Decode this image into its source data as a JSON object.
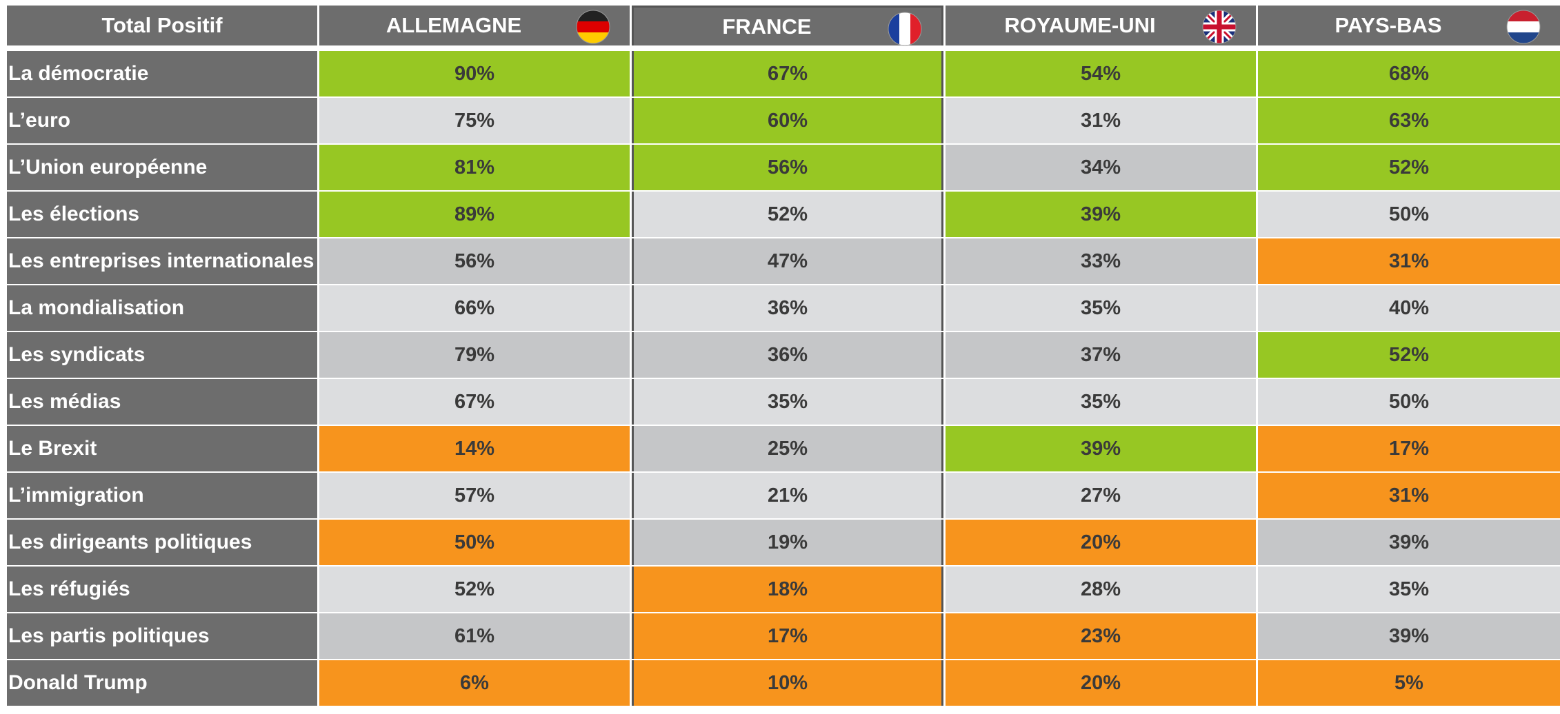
{
  "table": {
    "header": [
      "Total Positif",
      "ALLEMAGNE",
      "FRANCE",
      "ROYAUME-UNI",
      "PAYS-BAS"
    ],
    "rows": [
      {
        "label": "La démocratie",
        "values": [
          "90%",
          "67%",
          "54%",
          "68%"
        ],
        "colors": [
          "#97c723",
          "#97c723",
          "#97c723",
          "#97c723"
        ]
      },
      {
        "label": "L’euro",
        "values": [
          "75%",
          "60%",
          "31%",
          "63%"
        ],
        "colors": [
          "#dcdddf",
          "#97c723",
          "#dcdddf",
          "#97c723"
        ]
      },
      {
        "label": "L’Union européenne",
        "values": [
          "81%",
          "56%",
          "34%",
          "52%"
        ],
        "colors": [
          "#97c723",
          "#97c723",
          "#c5c6c8",
          "#97c723"
        ]
      },
      {
        "label": "Les élections",
        "values": [
          "89%",
          "52%",
          "39%",
          "50%"
        ],
        "colors": [
          "#97c723",
          "#dcdddf",
          "#97c723",
          "#dcdddf"
        ]
      },
      {
        "label": "Les entreprises internationales",
        "values": [
          "56%",
          "47%",
          "33%",
          "31%"
        ],
        "colors": [
          "#c5c6c8",
          "#c5c6c8",
          "#c5c6c8",
          "#f7941d"
        ]
      },
      {
        "label": "La mondialisation",
        "values": [
          "66%",
          "36%",
          "35%",
          "40%"
        ],
        "colors": [
          "#dcdddf",
          "#dcdddf",
          "#dcdddf",
          "#dcdddf"
        ]
      },
      {
        "label": "Les syndicats",
        "values": [
          "79%",
          "36%",
          "37%",
          "52%"
        ],
        "colors": [
          "#c5c6c8",
          "#c5c6c8",
          "#c5c6c8",
          "#97c723"
        ]
      },
      {
        "label": "Les médias",
        "values": [
          "67%",
          "35%",
          "35%",
          "50%"
        ],
        "colors": [
          "#dcdddf",
          "#dcdddf",
          "#dcdddf",
          "#dcdddf"
        ]
      },
      {
        "label": "Le Brexit",
        "values": [
          "14%",
          "25%",
          "39%",
          "17%"
        ],
        "colors": [
          "#f7941d",
          "#c5c6c8",
          "#97c723",
          "#f7941d"
        ]
      },
      {
        "label": "L’immigration",
        "values": [
          "57%",
          "21%",
          "27%",
          "31%"
        ],
        "colors": [
          "#dcdddf",
          "#dcdddf",
          "#dcdddf",
          "#f7941d"
        ]
      },
      {
        "label": "Les dirigeants politiques",
        "values": [
          "50%",
          "19%",
          "20%",
          "39%"
        ],
        "colors": [
          "#f7941d",
          "#c5c6c8",
          "#f7941d",
          "#c5c6c8"
        ]
      },
      {
        "label": "Les réfugiés",
        "values": [
          "52%",
          "18%",
          "28%",
          "35%"
        ],
        "colors": [
          "#dcdddf",
          "#f7941d",
          "#dcdddf",
          "#dcdddf"
        ]
      },
      {
        "label": "Les partis politiques",
        "values": [
          "61%",
          "17%",
          "23%",
          "39%"
        ],
        "colors": [
          "#c5c6c8",
          "#f7941d",
          "#f7941d",
          "#c5c6c8"
        ]
      },
      {
        "label": "Donald Trump",
        "values": [
          "6%",
          "10%",
          "20%",
          "5%"
        ],
        "colors": [
          "#f7941d",
          "#f7941d",
          "#f7941d",
          "#f7941d"
        ]
      }
    ]
  }
}
